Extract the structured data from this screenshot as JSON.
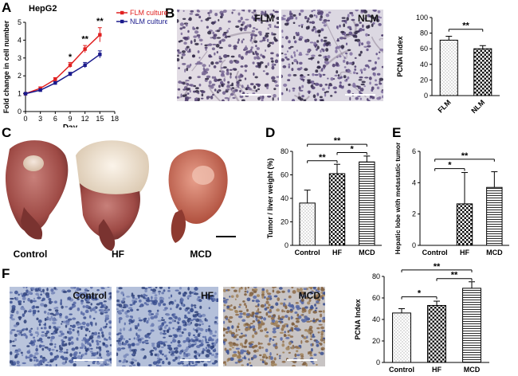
{
  "panels": {
    "A": "A",
    "B": "B",
    "C": "C",
    "D": "D",
    "E": "E",
    "F": "F"
  },
  "colors": {
    "flm": "#e02020",
    "nlm": "#1a1a8c",
    "stain_purple": "#7a5e95",
    "ihc_blue": "#5a6fa8",
    "liver": "#a5504a"
  },
  "panel_b": {
    "images": [
      {
        "label": "FLM"
      },
      {
        "label": "NLM"
      }
    ]
  },
  "panel_c": {
    "labels": [
      "Control",
      "HF",
      "MCD"
    ]
  },
  "panel_f": {
    "images": [
      {
        "label": "Control"
      },
      {
        "label": "HF"
      },
      {
        "label": "MCD"
      }
    ]
  },
  "chart_data": [
    {
      "id": "A",
      "type": "line",
      "title": "HepG2",
      "xlabel": "Day",
      "ylabel": "Fold change in cell number",
      "xlim": [
        0,
        18
      ],
      "ylim": [
        0,
        5
      ],
      "x_ticks": [
        0,
        3,
        6,
        9,
        12,
        15,
        18
      ],
      "y_ticks": [
        0,
        1,
        2,
        3,
        4,
        5
      ],
      "legend_position": "top-left",
      "series": [
        {
          "name": "FLM culture",
          "color": "#e02020",
          "x": [
            0,
            3,
            6,
            9,
            12,
            15
          ],
          "y": [
            1.0,
            1.3,
            1.8,
            2.6,
            3.5,
            4.3
          ],
          "err": [
            0.05,
            0.08,
            0.1,
            0.15,
            0.2,
            0.4
          ]
        },
        {
          "name": "NLM culture",
          "color": "#1a1a8c",
          "x": [
            0,
            3,
            6,
            9,
            12,
            15
          ],
          "y": [
            1.0,
            1.2,
            1.6,
            2.1,
            2.6,
            3.2
          ],
          "err": [
            0.05,
            0.06,
            0.08,
            0.1,
            0.15,
            0.2
          ]
        }
      ],
      "annotations": [
        {
          "x": 9,
          "y": 2.9,
          "text": "*"
        },
        {
          "x": 12,
          "y": 3.9,
          "text": "**"
        },
        {
          "x": 15,
          "y": 4.9,
          "text": "**"
        }
      ]
    },
    {
      "id": "B",
      "type": "bar",
      "ylabel": "PCNA Index",
      "categories": [
        "FLM",
        "NLM"
      ],
      "values": [
        71,
        60
      ],
      "errors": [
        5,
        4
      ],
      "patterns": [
        "dots",
        "checker"
      ],
      "ylim": [
        0,
        100
      ],
      "y_ticks": [
        0,
        20,
        40,
        60,
        80,
        100
      ],
      "significance": [
        {
          "from": 0,
          "to": 1,
          "y": 85,
          "text": "**"
        }
      ]
    },
    {
      "id": "D",
      "type": "bar",
      "ylabel": "Tumor / liver weight (%)",
      "categories": [
        "Control",
        "HF",
        "MCD"
      ],
      "values": [
        36,
        61,
        71
      ],
      "errors": [
        11,
        8,
        5
      ],
      "patterns": [
        "dots",
        "checker",
        "hlines"
      ],
      "ylim": [
        0,
        80
      ],
      "y_ticks": [
        0,
        20,
        40,
        60,
        80
      ],
      "significance": [
        {
          "from": 0,
          "to": 2,
          "y": 86,
          "text": "**"
        },
        {
          "from": 0,
          "to": 1,
          "y": 72,
          "text": "**"
        },
        {
          "from": 1,
          "to": 2,
          "y": 79,
          "text": "*"
        }
      ]
    },
    {
      "id": "E",
      "type": "bar",
      "ylabel": "Hepatic lobe with metastatic tumor",
      "categories": [
        "Control",
        "HF",
        "MCD"
      ],
      "values": [
        0,
        2.65,
        3.7
      ],
      "errors": [
        0,
        2.0,
        1.0
      ],
      "patterns": [
        "dots",
        "checker",
        "hlines"
      ],
      "ylim": [
        0,
        6
      ],
      "y_ticks": [
        0,
        2,
        4,
        6
      ],
      "significance": [
        {
          "from": 0,
          "to": 1,
          "y": 4.9,
          "text": "*"
        },
        {
          "from": 0,
          "to": 2,
          "y": 5.5,
          "text": "**"
        }
      ]
    },
    {
      "id": "F",
      "type": "bar",
      "ylabel": "PCNA Index",
      "categories": [
        "Control",
        "HF",
        "MCD"
      ],
      "values": [
        46,
        53,
        69
      ],
      "errors": [
        4,
        4,
        6
      ],
      "patterns": [
        "dots",
        "checker",
        "hlines"
      ],
      "ylim": [
        0,
        80
      ],
      "y_ticks": [
        0,
        20,
        40,
        60,
        80
      ],
      "significance": [
        {
          "from": 0,
          "to": 1,
          "y": 61,
          "text": "*"
        },
        {
          "from": 1,
          "to": 2,
          "y": 78,
          "text": "**"
        },
        {
          "from": 0,
          "to": 2,
          "y": 86,
          "text": "**"
        }
      ]
    }
  ]
}
